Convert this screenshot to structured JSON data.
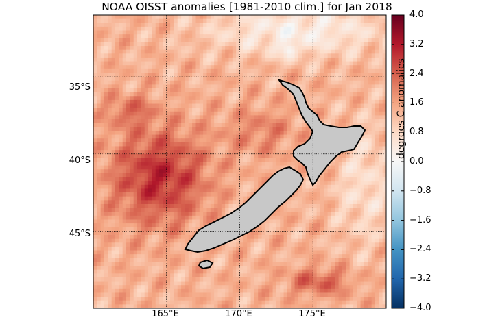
{
  "title": "NOAA OISST anomalies [1981-2010 clim.] for Jan 2018",
  "map": {
    "lon_range": [
      160,
      180
    ],
    "lat_range": [
      -50,
      -31
    ],
    "lon_ticks": [
      165,
      170,
      175
    ],
    "lon_tick_labels": [
      "165°E",
      "170°E",
      "175°E"
    ],
    "lat_ticks": [
      -35,
      -40,
      -45
    ],
    "lat_tick_labels": [
      "35°S",
      "40°S",
      "45°S"
    ],
    "gridlines": true,
    "land_color": "#c8c8c8"
  },
  "colorbar": {
    "label": "degrees C anomalies",
    "min": -4.0,
    "max": 4.0,
    "ticks": [
      "4.0",
      "3.2",
      "2.4",
      "1.6",
      "0.8",
      "0.0",
      "−0.8",
      "−1.6",
      "−2.4",
      "−3.2",
      "−4.0"
    ],
    "colormap": [
      "#053061",
      "#2166ac",
      "#4393c3",
      "#92c5de",
      "#d1e5f0",
      "#f7f7f7",
      "#fddbc7",
      "#f4a582",
      "#d6604d",
      "#b2182b",
      "#67001f"
    ]
  }
}
